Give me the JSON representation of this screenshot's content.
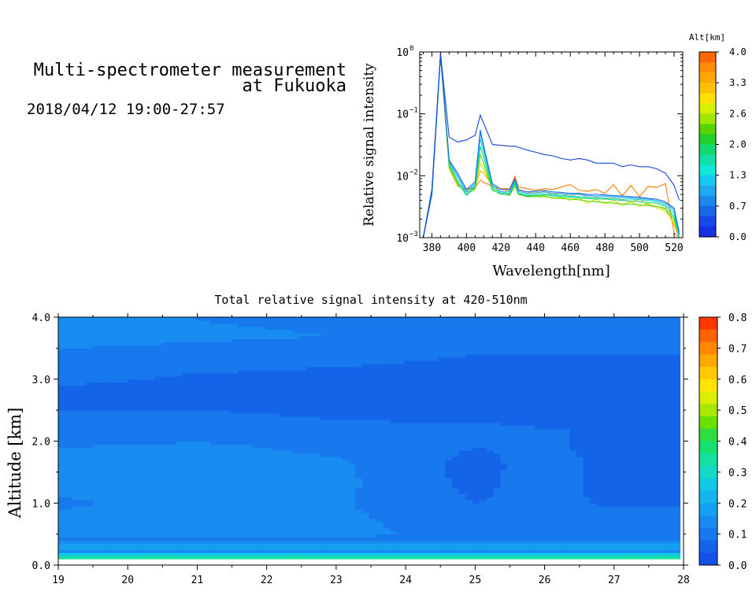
{
  "header": {
    "title_line1": "Multi-spectrometer measurement",
    "title_line2": "at Fukuoka",
    "date_range": "2018/04/12 19:00-27:57"
  },
  "chart_data": [
    {
      "type": "line",
      "title": "",
      "xlabel": "Wavelength[nm]",
      "ylabel": "Relative signal intensity",
      "yscale": "log",
      "xlim": [
        373,
        525
      ],
      "ylim": [
        0.001,
        1
      ],
      "x_ticks": [
        "380",
        "400",
        "420",
        "440",
        "460",
        "480",
        "500",
        "520"
      ],
      "y_tick_labels": [
        {
          "base": "10",
          "exp": "0",
          "value": 1
        },
        {
          "base": "10",
          "exp": "−1",
          "value": 0.1
        },
        {
          "base": "10",
          "exp": "−2",
          "value": 0.01
        },
        {
          "base": "10",
          "exp": "−3",
          "value": 0.001
        }
      ],
      "x": [
        375,
        380,
        385,
        390,
        395,
        400,
        405,
        408,
        410,
        415,
        420,
        425,
        428,
        430,
        435,
        440,
        445,
        450,
        455,
        460,
        465,
        470,
        475,
        480,
        485,
        490,
        495,
        500,
        505,
        510,
        515,
        520,
        523
      ],
      "colorbar": {
        "title": "Alt[km]",
        "tick_labels": [
          "4.0",
          "3.3",
          "2.6",
          "2.0",
          "1.3",
          "0.7",
          "0.0"
        ],
        "colors": [
          "#ff6600",
          "#ff8c00",
          "#ffa500",
          "#ffc000",
          "#ffe000",
          "#d8f000",
          "#a0e600",
          "#5ad400",
          "#22d028",
          "#14d870",
          "#10e0a8",
          "#10e8d8",
          "#18c8f0",
          "#20a8f0",
          "#1a88ec",
          "#1668e8",
          "#1448e8",
          "#1830e0"
        ]
      },
      "series": [
        {
          "color": "#1844d8",
          "values": [
            0.001,
            0.006,
            0.95,
            0.042,
            0.035,
            0.038,
            0.045,
            0.095,
            0.07,
            0.032,
            0.031,
            0.03,
            0.03,
            0.029,
            0.026,
            0.024,
            0.022,
            0.021,
            0.019,
            0.018,
            0.019,
            0.018,
            0.016,
            0.016,
            0.016,
            0.014,
            0.015,
            0.014,
            0.014,
            0.013,
            0.011,
            0.007,
            0.004
          ]
        },
        {
          "color": "#1c6ee6",
          "values": [
            0.001,
            0.005,
            0.92,
            0.018,
            0.011,
            0.006,
            0.008,
            0.055,
            0.03,
            0.0075,
            0.006,
            0.006,
            0.009,
            0.006,
            0.0055,
            0.0056,
            0.0058,
            0.0055,
            0.0054,
            0.0052,
            0.0052,
            0.005,
            0.005,
            0.0049,
            0.0048,
            0.0047,
            0.0046,
            0.0045,
            0.0043,
            0.0042,
            0.0038,
            0.003,
            0.0012
          ]
        },
        {
          "color": "#1aa0f0",
          "values": [
            0.001,
            0.005,
            0.92,
            0.017,
            0.01,
            0.0055,
            0.0075,
            0.05,
            0.028,
            0.007,
            0.0055,
            0.0055,
            0.0085,
            0.0056,
            0.0052,
            0.0053,
            0.0055,
            0.0052,
            0.0051,
            0.005,
            0.005,
            0.0048,
            0.0047,
            0.0047,
            0.0046,
            0.0045,
            0.0044,
            0.0043,
            0.0042,
            0.004,
            0.0036,
            0.0028,
            0.0011
          ]
        },
        {
          "color": "#14d8d0",
          "values": [
            0.001,
            0.005,
            0.9,
            0.016,
            0.009,
            0.005,
            0.007,
            0.04,
            0.024,
            0.0065,
            0.0052,
            0.0052,
            0.008,
            0.0053,
            0.0049,
            0.005,
            0.0051,
            0.0049,
            0.0048,
            0.0047,
            0.0046,
            0.0045,
            0.0044,
            0.0044,
            0.0043,
            0.0042,
            0.0042,
            0.0041,
            0.004,
            0.0038,
            0.0034,
            0.0025,
            0.001
          ]
        },
        {
          "color": "#14d878",
          "values": [
            0.001,
            0.005,
            0.9,
            0.015,
            0.008,
            0.0048,
            0.0066,
            0.03,
            0.02,
            0.006,
            0.005,
            0.005,
            0.0075,
            0.0051,
            0.0047,
            0.0048,
            0.0049,
            0.0047,
            0.0046,
            0.0045,
            0.0044,
            0.0043,
            0.0042,
            0.0042,
            0.0041,
            0.004,
            0.0039,
            0.0038,
            0.0037,
            0.0036,
            0.0032,
            0.0022,
            0.001
          ]
        },
        {
          "color": "#5ad400",
          "values": [
            0.001,
            0.005,
            0.88,
            0.014,
            0.0075,
            0.005,
            0.0062,
            0.022,
            0.016,
            0.0058,
            0.0052,
            0.0048,
            0.007,
            0.005,
            0.0046,
            0.0046,
            0.0046,
            0.0044,
            0.0043,
            0.0042,
            0.0041,
            0.0039,
            0.0038,
            0.0037,
            0.0036,
            0.0035,
            0.0035,
            0.0034,
            0.0033,
            0.0032,
            0.0029,
            0.002,
            0.001
          ]
        },
        {
          "color": "#c8e400",
          "values": [
            0.001,
            0.005,
            0.88,
            0.013,
            0.0072,
            0.0055,
            0.006,
            0.016,
            0.013,
            0.0062,
            0.0056,
            0.005,
            0.0066,
            0.0052,
            0.0048,
            0.0048,
            0.0047,
            0.0043,
            0.0045,
            0.004,
            0.0044,
            0.0036,
            0.0042,
            0.0035,
            0.004,
            0.0033,
            0.0038,
            0.0032,
            0.0036,
            0.003,
            0.0027,
            0.0018,
            0.001
          ]
        },
        {
          "color": "#ffb000",
          "values": [
            0.001,
            0.005,
            0.87,
            0.013,
            0.007,
            0.006,
            0.0063,
            0.012,
            0.011,
            0.0068,
            0.006,
            0.0057,
            0.0072,
            0.0058,
            0.0055,
            0.0052,
            0.0056,
            0.0049,
            0.0052,
            0.0046,
            0.0053,
            0.0044,
            0.0045,
            0.0043,
            0.0044,
            0.0041,
            0.0038,
            0.0042,
            0.0034,
            0.0032,
            0.003,
            0.0016,
            0.001
          ]
        },
        {
          "color": "#ff7a00",
          "values": [
            0.001,
            0.005,
            0.87,
            0.013,
            0.0068,
            0.0062,
            0.0065,
            0.0085,
            0.0078,
            0.0068,
            0.0062,
            0.0062,
            0.0098,
            0.0066,
            0.0062,
            0.0058,
            0.0062,
            0.006,
            0.0066,
            0.0072,
            0.0058,
            0.0056,
            0.006,
            0.0052,
            0.0072,
            0.0047,
            0.007,
            0.0046,
            0.0067,
            0.0065,
            0.0075,
            0.0012,
            0.001
          ]
        }
      ]
    },
    {
      "type": "heatmap",
      "title": "Total relative signal intensity at 420-510nm",
      "xlabel": "",
      "ylabel": "Altitude [km]",
      "xlim": [
        19,
        28
      ],
      "ylim": [
        0,
        4
      ],
      "x_ticks": [
        "19",
        "20",
        "21",
        "22",
        "23",
        "24",
        "25",
        "26",
        "27",
        "28"
      ],
      "y_ticks": [
        "0.0",
        "1.0",
        "2.0",
        "3.0",
        "4.0"
      ],
      "data_extent": {
        "x": [
          19,
          27.95
        ],
        "y": [
          0.1,
          4.0
        ]
      },
      "colorbar": {
        "tick_labels": [
          "0.8",
          "0.7",
          "0.6",
          "0.5",
          "0.4",
          "0.3",
          "0.2",
          "0.1",
          "0.0"
        ],
        "range": [
          0,
          0.8
        ],
        "colors": [
          "#1450e8",
          "#1464ea",
          "#1878ee",
          "#188cf0",
          "#16a0f2",
          "#16b4ee",
          "#14c8e6",
          "#14d8c8",
          "#14e0a0",
          "#18e070",
          "#30dc40",
          "#68e000",
          "#a8e800",
          "#d8f000",
          "#ffe400",
          "#ffc800",
          "#ffa800",
          "#ff8800",
          "#ff6400",
          "#ff3800"
        ]
      },
      "profile": {
        "altitudes_km": [
          0.1,
          0.15,
          0.2,
          0.25,
          0.3,
          0.35,
          0.4,
          0.5,
          0.7,
          1.0,
          1.3,
          1.6,
          1.9,
          2.2,
          2.5,
          2.8,
          3.1,
          3.4,
          3.7,
          3.95
        ],
        "segments": [
          {
            "x_start": 19.0,
            "values": [
              0.36,
              0.32,
              0.19,
              0.12,
              0.21,
              0.14,
              0.115,
              0.125,
              0.13,
              0.115,
              0.13,
              0.13,
              0.12,
              0.09,
              0.08,
              0.075,
              0.09,
              0.11,
              0.14,
              0.13
            ]
          },
          {
            "x_start": 21.0,
            "values": [
              0.36,
              0.32,
              0.19,
              0.12,
              0.21,
              0.14,
              0.115,
              0.13,
              0.135,
              0.13,
              0.14,
              0.14,
              0.13,
              0.095,
              0.08,
              0.07,
              0.08,
              0.1,
              0.13,
              0.12
            ]
          },
          {
            "x_start": 23.0,
            "values": [
              0.36,
              0.32,
              0.19,
              0.12,
              0.21,
              0.14,
              0.115,
              0.125,
              0.13,
              0.125,
              0.13,
              0.13,
              0.11,
              0.085,
              0.075,
              0.065,
              0.075,
              0.09,
              0.12,
              0.11
            ]
          },
          {
            "x_start": 25.0,
            "values": [
              0.36,
              0.32,
              0.19,
              0.12,
              0.21,
              0.14,
              0.11,
              0.115,
              0.1,
              0.08,
              0.07,
              0.065,
              0.08,
              0.085,
              0.07,
              0.06,
              0.07,
              0.08,
              0.1,
              0.1
            ]
          },
          {
            "x_start": 26.0,
            "values": [
              0.36,
              0.32,
              0.19,
              0.12,
              0.21,
              0.14,
              0.11,
              0.12,
              0.105,
              0.09,
              0.1,
              0.1,
              0.085,
              0.08,
              0.07,
              0.06,
              0.07,
              0.08,
              0.1,
              0.1
            ]
          },
          {
            "x_start": 27.0,
            "values": [
              0.36,
              0.32,
              0.19,
              0.12,
              0.21,
              0.14,
              0.11,
              0.115,
              0.1,
              0.075,
              0.065,
              0.065,
              0.07,
              0.08,
              0.07,
              0.06,
              0.07,
              0.08,
              0.1,
              0.1
            ]
          }
        ]
      }
    }
  ]
}
